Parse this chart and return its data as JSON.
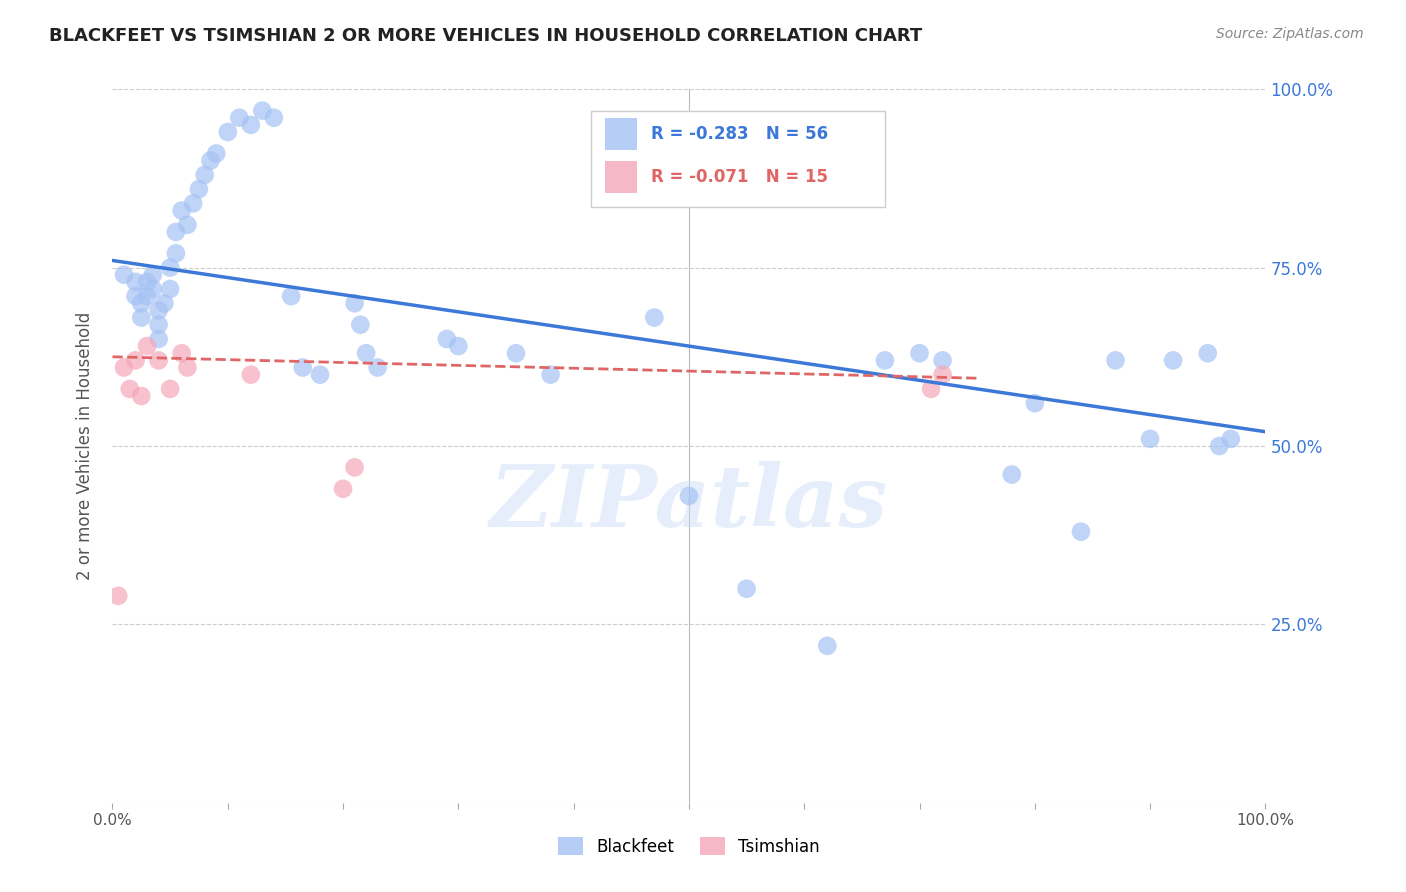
{
  "title": "BLACKFEET VS TSIMSHIAN 2 OR MORE VEHICLES IN HOUSEHOLD CORRELATION CHART",
  "source": "Source: ZipAtlas.com",
  "ylabel": "2 or more Vehicles in Household",
  "blackfeet_R": -0.283,
  "blackfeet_N": 56,
  "tsimshian_R": -0.071,
  "tsimshian_N": 15,
  "blackfeet_color": "#a4c2f4",
  "tsimshian_color": "#f4a7b9",
  "blackfeet_line_color": "#3c78d8",
  "tsimshian_line_color": "#e06666",
  "watermark": "ZIPatlas",
  "xlim": [
    0.0,
    1.0
  ],
  "ylim": [
    0.0,
    1.0
  ],
  "right_ytick_labels": [
    "100.0%",
    "75.0%",
    "50.0%",
    "25.0%"
  ],
  "right_ytick_positions": [
    1.0,
    0.75,
    0.5,
    0.25
  ],
  "blackfeet_x": [
    0.01,
    0.02,
    0.02,
    0.025,
    0.025,
    0.03,
    0.03,
    0.035,
    0.035,
    0.04,
    0.04,
    0.04,
    0.045,
    0.05,
    0.05,
    0.055,
    0.055,
    0.06,
    0.065,
    0.07,
    0.075,
    0.08,
    0.085,
    0.09,
    0.1,
    0.11,
    0.12,
    0.13,
    0.14,
    0.155,
    0.165,
    0.18,
    0.21,
    0.215,
    0.22,
    0.23,
    0.29,
    0.3,
    0.35,
    0.38,
    0.47,
    0.5,
    0.55,
    0.62,
    0.67,
    0.7,
    0.72,
    0.78,
    0.8,
    0.84,
    0.87,
    0.9,
    0.92,
    0.95,
    0.96,
    0.97
  ],
  "blackfeet_y": [
    0.74,
    0.73,
    0.71,
    0.7,
    0.68,
    0.73,
    0.71,
    0.74,
    0.72,
    0.69,
    0.67,
    0.65,
    0.7,
    0.75,
    0.72,
    0.8,
    0.77,
    0.83,
    0.81,
    0.84,
    0.86,
    0.88,
    0.9,
    0.91,
    0.94,
    0.96,
    0.95,
    0.97,
    0.96,
    0.71,
    0.61,
    0.6,
    0.7,
    0.67,
    0.63,
    0.61,
    0.65,
    0.64,
    0.63,
    0.6,
    0.68,
    0.43,
    0.3,
    0.22,
    0.62,
    0.63,
    0.62,
    0.46,
    0.56,
    0.38,
    0.62,
    0.51,
    0.62,
    0.63,
    0.5,
    0.51
  ],
  "tsimshian_x": [
    0.005,
    0.01,
    0.015,
    0.02,
    0.025,
    0.03,
    0.04,
    0.05,
    0.06,
    0.065,
    0.12,
    0.2,
    0.21,
    0.71,
    0.72
  ],
  "tsimshian_y": [
    0.29,
    0.61,
    0.58,
    0.62,
    0.57,
    0.64,
    0.62,
    0.58,
    0.63,
    0.61,
    0.6,
    0.44,
    0.47,
    0.58,
    0.6
  ],
  "blackfeet_trend_x": [
    0.0,
    1.0
  ],
  "blackfeet_trend_y": [
    0.76,
    0.52
  ],
  "tsimshian_trend_x": [
    0.0,
    0.75
  ],
  "tsimshian_trend_y": [
    0.625,
    0.595
  ]
}
